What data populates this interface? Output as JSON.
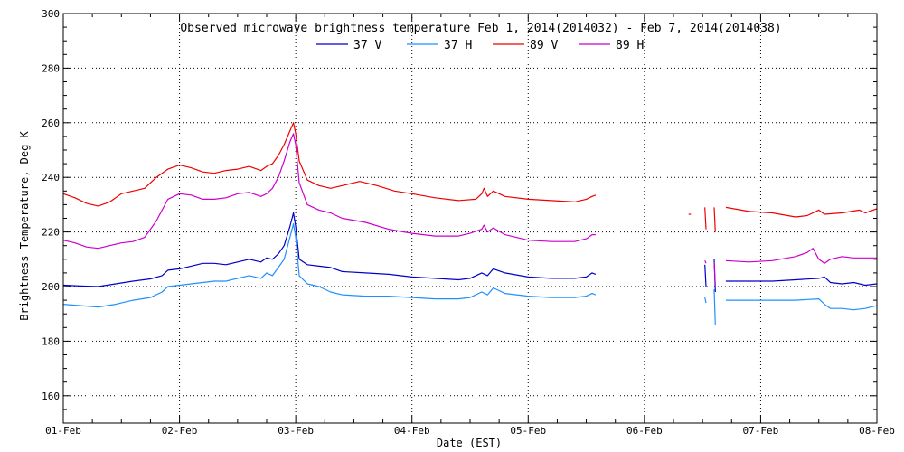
{
  "chart_data": {
    "type": "line",
    "title": "Observed microwave brightness temperature Feb  1, 2014(2014032) - Feb  7, 2014(2014038)",
    "xlabel": "Date (EST)",
    "ylabel": "Brightness Temperature, Deg K",
    "ylim": [
      150,
      300
    ],
    "xlim": [
      0,
      7
    ],
    "grid": true,
    "legend_position": "top",
    "yticks": [
      160,
      180,
      200,
      220,
      240,
      260,
      280,
      300
    ],
    "xticks": [
      {
        "x": 0,
        "label": "01-Feb"
      },
      {
        "x": 1,
        "label": "02-Feb"
      },
      {
        "x": 2,
        "label": "03-Feb"
      },
      {
        "x": 3,
        "label": "04-Feb"
      },
      {
        "x": 4,
        "label": "05-Feb"
      },
      {
        "x": 5,
        "label": "06-Feb"
      },
      {
        "x": 6,
        "label": "07-Feb"
      },
      {
        "x": 7,
        "label": "08-Feb"
      }
    ],
    "series": [
      {
        "name": "37 V",
        "color": "#0000cc",
        "segments": [
          [
            [
              0.0,
              200.5
            ],
            [
              0.15,
              200.2
            ],
            [
              0.3,
              200.0
            ],
            [
              0.45,
              201.0
            ],
            [
              0.6,
              202.0
            ],
            [
              0.75,
              202.8
            ],
            [
              0.85,
              204.0
            ],
            [
              0.9,
              206.0
            ],
            [
              1.0,
              206.5
            ],
            [
              1.1,
              207.5
            ],
            [
              1.2,
              208.5
            ],
            [
              1.3,
              208.5
            ],
            [
              1.4,
              208.0
            ],
            [
              1.5,
              209.0
            ],
            [
              1.6,
              210.0
            ],
            [
              1.7,
              209.0
            ],
            [
              1.75,
              210.5
            ],
            [
              1.8,
              210.0
            ],
            [
              1.85,
              212.0
            ],
            [
              1.9,
              215.0
            ],
            [
              1.95,
              222.0
            ],
            [
              1.98,
              227.0
            ],
            [
              2.0,
              222.0
            ],
            [
              2.03,
              210.0
            ],
            [
              2.1,
              208.0
            ],
            [
              2.2,
              207.5
            ],
            [
              2.3,
              207.0
            ],
            [
              2.4,
              205.5
            ],
            [
              2.6,
              205.0
            ],
            [
              2.8,
              204.5
            ],
            [
              3.0,
              203.5
            ],
            [
              3.2,
              203.0
            ],
            [
              3.4,
              202.5
            ],
            [
              3.5,
              203.0
            ],
            [
              3.6,
              205.0
            ],
            [
              3.65,
              204.0
            ],
            [
              3.7,
              206.5
            ],
            [
              3.8,
              205.0
            ],
            [
              4.0,
              203.5
            ],
            [
              4.2,
              203.0
            ],
            [
              4.4,
              203.0
            ],
            [
              4.5,
              203.5
            ],
            [
              4.55,
              205.0
            ],
            [
              4.58,
              204.5
            ]
          ],
          [
            [
              5.52,
              208.0
            ],
            [
              5.53,
              200.0
            ]
          ],
          [
            [
              5.6,
              210.0
            ],
            [
              5.61,
              198.0
            ]
          ],
          [
            [
              5.7,
              202.0
            ],
            [
              5.9,
              202.0
            ],
            [
              6.1,
              202.0
            ],
            [
              6.3,
              202.5
            ],
            [
              6.5,
              203.0
            ],
            [
              6.55,
              203.5
            ],
            [
              6.6,
              201.5
            ],
            [
              6.7,
              201.0
            ],
            [
              6.8,
              201.5
            ],
            [
              6.9,
              200.5
            ],
            [
              7.0,
              201.0
            ]
          ]
        ]
      },
      {
        "name": "37 H",
        "color": "#1e90ff",
        "segments": [
          [
            [
              0.0,
              193.5
            ],
            [
              0.15,
              193.0
            ],
            [
              0.3,
              192.5
            ],
            [
              0.45,
              193.5
            ],
            [
              0.6,
              195.0
            ],
            [
              0.75,
              196.0
            ],
            [
              0.85,
              198.0
            ],
            [
              0.9,
              200.0
            ],
            [
              1.0,
              200.5
            ],
            [
              1.1,
              201.0
            ],
            [
              1.2,
              201.5
            ],
            [
              1.3,
              202.0
            ],
            [
              1.4,
              202.0
            ],
            [
              1.5,
              203.0
            ],
            [
              1.6,
              204.0
            ],
            [
              1.7,
              203.0
            ],
            [
              1.75,
              205.0
            ],
            [
              1.8,
              204.0
            ],
            [
              1.85,
              207.0
            ],
            [
              1.9,
              210.0
            ],
            [
              1.95,
              218.0
            ],
            [
              1.98,
              223.0
            ],
            [
              2.0,
              218.0
            ],
            [
              2.03,
              204.0
            ],
            [
              2.1,
              201.0
            ],
            [
              2.2,
              200.0
            ],
            [
              2.3,
              198.0
            ],
            [
              2.4,
              197.0
            ],
            [
              2.6,
              196.5
            ],
            [
              2.8,
              196.5
            ],
            [
              3.0,
              196.0
            ],
            [
              3.2,
              195.5
            ],
            [
              3.4,
              195.5
            ],
            [
              3.5,
              196.0
            ],
            [
              3.6,
              198.0
            ],
            [
              3.65,
              197.0
            ],
            [
              3.7,
              199.5
            ],
            [
              3.8,
              197.5
            ],
            [
              4.0,
              196.5
            ],
            [
              4.2,
              196.0
            ],
            [
              4.4,
              196.0
            ],
            [
              4.5,
              196.5
            ],
            [
              4.55,
              197.5
            ],
            [
              4.58,
              197.0
            ]
          ],
          [
            [
              5.52,
              196.0
            ],
            [
              5.53,
              194.0
            ]
          ],
          [
            [
              5.6,
              199.0
            ],
            [
              5.61,
              186.0
            ]
          ],
          [
            [
              5.7,
              195.0
            ],
            [
              5.9,
              195.0
            ],
            [
              6.1,
              195.0
            ],
            [
              6.3,
              195.0
            ],
            [
              6.5,
              195.5
            ],
            [
              6.55,
              193.5
            ],
            [
              6.6,
              192.0
            ],
            [
              6.7,
              192.0
            ],
            [
              6.8,
              191.5
            ],
            [
              6.9,
              192.0
            ],
            [
              7.0,
              193.0
            ]
          ]
        ]
      },
      {
        "name": "89 V",
        "color": "#ee0000",
        "segments": [
          [
            [
              0.0,
              234.0
            ],
            [
              0.1,
              232.5
            ],
            [
              0.2,
              230.5
            ],
            [
              0.3,
              229.5
            ],
            [
              0.4,
              231.0
            ],
            [
              0.5,
              234.0
            ],
            [
              0.6,
              235.0
            ],
            [
              0.7,
              236.0
            ],
            [
              0.8,
              240.0
            ],
            [
              0.9,
              243.0
            ],
            [
              1.0,
              244.5
            ],
            [
              1.1,
              243.5
            ],
            [
              1.2,
              242.0
            ],
            [
              1.3,
              241.5
            ],
            [
              1.4,
              242.5
            ],
            [
              1.5,
              243.0
            ],
            [
              1.6,
              244.0
            ],
            [
              1.7,
              242.5
            ],
            [
              1.75,
              244.0
            ],
            [
              1.8,
              245.0
            ],
            [
              1.85,
              248.0
            ],
            [
              1.9,
              252.0
            ],
            [
              1.95,
              257.0
            ],
            [
              1.98,
              260.0
            ],
            [
              2.0,
              256.0
            ],
            [
              2.03,
              246.0
            ],
            [
              2.1,
              239.0
            ],
            [
              2.2,
              237.0
            ],
            [
              2.3,
              236.0
            ],
            [
              2.4,
              237.0
            ],
            [
              2.55,
              238.5
            ],
            [
              2.7,
              237.0
            ],
            [
              2.85,
              235.0
            ],
            [
              3.0,
              234.0
            ],
            [
              3.2,
              232.5
            ],
            [
              3.4,
              231.5
            ],
            [
              3.55,
              232.0
            ],
            [
              3.6,
              234.0
            ],
            [
              3.62,
              236.0
            ],
            [
              3.65,
              233.0
            ],
            [
              3.7,
              235.0
            ],
            [
              3.8,
              233.0
            ],
            [
              4.0,
              232.0
            ],
            [
              4.2,
              231.5
            ],
            [
              4.4,
              231.0
            ],
            [
              4.5,
              232.0
            ],
            [
              4.55,
              233.0
            ],
            [
              4.58,
              233.5
            ]
          ],
          [
            [
              5.38,
              226.5
            ],
            [
              5.4,
              226.5
            ]
          ],
          [
            [
              5.52,
              229.0
            ],
            [
              5.53,
              221.0
            ]
          ],
          [
            [
              5.6,
              229.0
            ],
            [
              5.61,
              220.0
            ]
          ],
          [
            [
              5.7,
              229.0
            ],
            [
              5.9,
              227.5
            ],
            [
              6.1,
              227.0
            ],
            [
              6.3,
              225.5
            ],
            [
              6.4,
              226.0
            ],
            [
              6.5,
              228.0
            ],
            [
              6.55,
              226.5
            ],
            [
              6.7,
              227.0
            ],
            [
              6.85,
              228.0
            ],
            [
              6.9,
              227.0
            ],
            [
              7.0,
              228.5
            ]
          ]
        ]
      },
      {
        "name": "89 H",
        "color": "#cc00cc",
        "segments": [
          [
            [
              0.0,
              217.0
            ],
            [
              0.1,
              216.0
            ],
            [
              0.2,
              214.5
            ],
            [
              0.3,
              214.0
            ],
            [
              0.4,
              215.0
            ],
            [
              0.5,
              216.0
            ],
            [
              0.6,
              216.5
            ],
            [
              0.7,
              218.0
            ],
            [
              0.8,
              224.0
            ],
            [
              0.9,
              232.0
            ],
            [
              1.0,
              234.0
            ],
            [
              1.1,
              233.5
            ],
            [
              1.2,
              232.0
            ],
            [
              1.3,
              232.0
            ],
            [
              1.4,
              232.5
            ],
            [
              1.5,
              234.0
            ],
            [
              1.6,
              234.5
            ],
            [
              1.7,
              233.0
            ],
            [
              1.75,
              234.0
            ],
            [
              1.8,
              236.0
            ],
            [
              1.85,
              240.0
            ],
            [
              1.9,
              246.0
            ],
            [
              1.95,
              253.0
            ],
            [
              1.98,
              256.0
            ],
            [
              2.0,
              252.0
            ],
            [
              2.03,
              238.0
            ],
            [
              2.1,
              230.0
            ],
            [
              2.2,
              228.0
            ],
            [
              2.3,
              227.0
            ],
            [
              2.4,
              225.0
            ],
            [
              2.6,
              223.5
            ],
            [
              2.8,
              221.0
            ],
            [
              3.0,
              219.5
            ],
            [
              3.2,
              218.5
            ],
            [
              3.4,
              218.5
            ],
            [
              3.5,
              219.5
            ],
            [
              3.6,
              221.0
            ],
            [
              3.62,
              222.5
            ],
            [
              3.65,
              220.0
            ],
            [
              3.7,
              221.5
            ],
            [
              3.8,
              219.0
            ],
            [
              4.0,
              217.0
            ],
            [
              4.2,
              216.5
            ],
            [
              4.4,
              216.5
            ],
            [
              4.5,
              217.5
            ],
            [
              4.55,
              219.0
            ],
            [
              4.58,
              219.0
            ]
          ],
          [
            [
              5.52,
              209.5
            ],
            [
              5.53,
              208.5
            ]
          ],
          [
            [
              5.6,
              209.0
            ],
            [
              5.61,
              200.5
            ]
          ],
          [
            [
              5.7,
              209.5
            ],
            [
              5.9,
              209.0
            ],
            [
              6.1,
              209.5
            ],
            [
              6.3,
              211.0
            ],
            [
              6.4,
              212.5
            ],
            [
              6.45,
              214.0
            ],
            [
              6.5,
              210.0
            ],
            [
              6.55,
              208.5
            ],
            [
              6.6,
              210.0
            ],
            [
              6.7,
              211.0
            ],
            [
              6.8,
              210.5
            ],
            [
              6.9,
              210.5
            ],
            [
              7.0,
              210.5
            ]
          ]
        ]
      }
    ]
  }
}
